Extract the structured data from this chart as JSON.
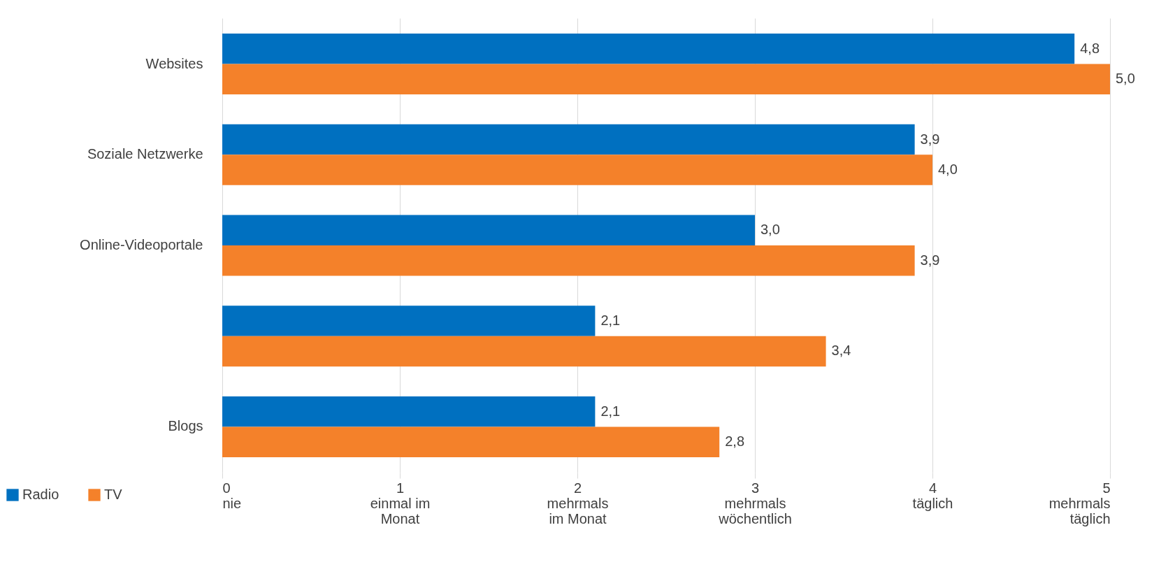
{
  "chart_data": {
    "type": "bar",
    "orientation": "horizontal",
    "categories": [
      "Websites",
      "Soziale Netzwerke",
      "Online-Videoportale",
      null,
      "Blogs"
    ],
    "series": [
      {
        "name": "Radio",
        "color": "#0070c0",
        "values": [
          4.8,
          3.9,
          3.0,
          2.1,
          2.1
        ],
        "value_labels": [
          "4,8",
          "3,9",
          "3,0",
          "2,1",
          "2,1"
        ]
      },
      {
        "name": "TV",
        "color": "#f4812a",
        "values": [
          5.0,
          4.0,
          3.9,
          3.4,
          2.8
        ],
        "value_labels": [
          "5,0",
          "4,0",
          "3,9",
          "3,4",
          "2,8"
        ]
      }
    ],
    "xlim": [
      0,
      5
    ],
    "xticks": [
      {
        "value": 0,
        "label": "0\nnie"
      },
      {
        "value": 1,
        "label": "1\neinmal im\nMonat"
      },
      {
        "value": 2,
        "label": "2\nmehrmals\nim Monat"
      },
      {
        "value": 3,
        "label": "3\nmehrmals\nwöchentlich"
      },
      {
        "value": 4,
        "label": "4\ntäglich"
      },
      {
        "value": 5,
        "label": "5\nmehrmals\ntäglich"
      }
    ],
    "grid": "x",
    "legend": "bottom left"
  }
}
